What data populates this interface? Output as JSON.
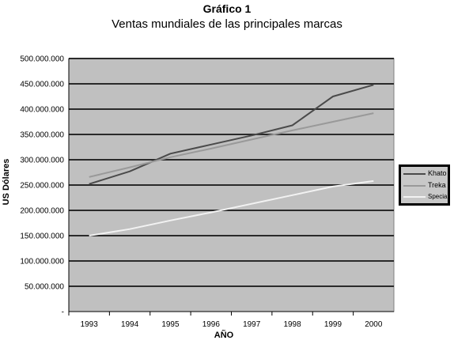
{
  "chart_data": {
    "type": "line",
    "title": "Gráfico 1",
    "subtitle": "Ventas mundiales de las principales marcas",
    "xlabel": "AÑO",
    "ylabel": "US Dólares",
    "categories": [
      "1993",
      "1994",
      "1995",
      "1996",
      "1997",
      "1998",
      "1999",
      "2000"
    ],
    "ylim": [
      0,
      500000000
    ],
    "yticks": [
      "-",
      "50.000.000",
      "100.000.000",
      "150.000.000",
      "200.000.000",
      "250.000.000",
      "300.000.000",
      "350.000.000",
      "400.000.000",
      "450.000.000",
      "500.000.000"
    ],
    "grid": true,
    "legend_position": "right",
    "series": [
      {
        "name": "Khato",
        "color": "#4a4a4a",
        "values": [
          252000000,
          277000000,
          312000000,
          330000000,
          348000000,
          368000000,
          425000000,
          448000000
        ]
      },
      {
        "name": "Treka",
        "color": "#999999",
        "values": [
          266000000,
          285000000,
          305000000,
          322000000,
          340000000,
          358000000,
          375000000,
          392000000
        ]
      },
      {
        "name": "Special",
        "color": "#f2f2f2",
        "values": [
          150000000,
          163000000,
          180000000,
          196000000,
          213000000,
          230000000,
          247000000,
          258000000
        ]
      }
    ]
  }
}
